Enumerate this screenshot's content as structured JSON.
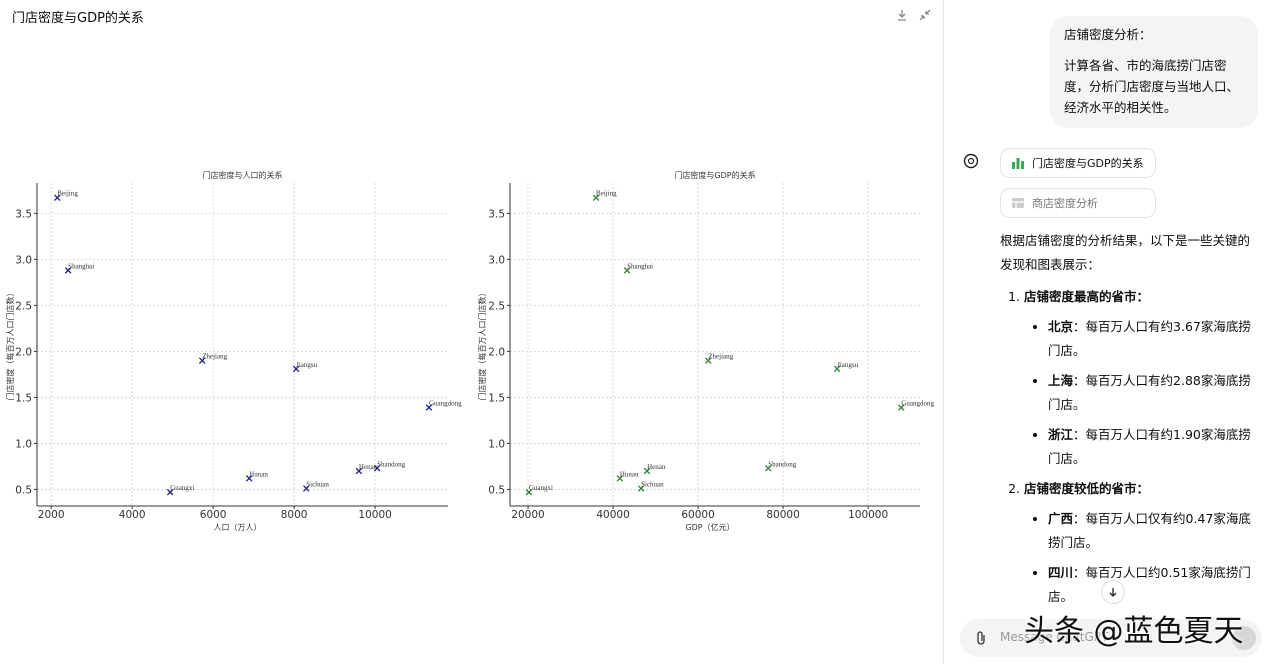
{
  "header": {
    "title": "门店密度与GDP的关系"
  },
  "chart_data": [
    {
      "type": "scatter",
      "title": "门店密度与人口的关系",
      "x_label": "人口（万人）",
      "y_label": "门店密度（每百万人口门店数）",
      "point_labels": [
        "Beijing",
        "Shanghai",
        "Zhejiang",
        "Jiangsu",
        "Guangdong",
        "Hunan",
        "Henan",
        "Shandong",
        "Sichuan",
        "Guangxi"
      ],
      "x": [
        2150,
        2420,
        5730,
        8050,
        11330,
        6890,
        9600,
        10050,
        8300,
        4940
      ],
      "values": [
        3.67,
        2.88,
        1.9,
        1.81,
        1.39,
        0.62,
        0.7,
        0.73,
        0.51,
        0.47
      ],
      "color": "#1c1c8f",
      "marker": "x",
      "grid": true,
      "xlim": [
        1650,
        11800
      ],
      "ylim": [
        0.32,
        3.83
      ],
      "xticks": [
        2000,
        4000,
        6000,
        8000,
        10000
      ],
      "yticks": [
        0.5,
        {
          "value": 1,
          "label": "1.0"
        },
        1.5,
        {
          "value": 2,
          "label": "2.0"
        },
        2.5,
        {
          "value": 3,
          "label": "3.0"
        },
        3.5
      ]
    },
    {
      "type": "scatter",
      "title": "门店密度与GDP的关系",
      "x_label": "GDP（亿元）",
      "y_label": "门店密度（每百万人口门店数）",
      "point_labels": [
        "Beijing",
        "Shanghai",
        "Zhejiang",
        "Jiangsu",
        "Guangdong",
        "Hunan",
        "Henan",
        "Shandong",
        "Sichuan",
        "Guangxi"
      ],
      "x": [
        36000,
        43300,
        62400,
        92700,
        107800,
        41600,
        48000,
        76500,
        46600,
        20200
      ],
      "values": [
        3.67,
        2.88,
        1.9,
        1.81,
        1.39,
        0.62,
        0.7,
        0.73,
        0.51,
        0.47
      ],
      "color": "#2e7d32",
      "marker": "x",
      "grid": true,
      "xlim": [
        15760,
        112200
      ],
      "ylim": [
        0.32,
        3.83
      ],
      "xticks": [
        20000,
        40000,
        60000,
        80000,
        100000
      ],
      "yticks": [
        0.5,
        {
          "value": 1,
          "label": "1.0"
        },
        1.5,
        {
          "value": 2,
          "label": "2.0"
        },
        2.5,
        {
          "value": 3,
          "label": "3.0"
        },
        3.5
      ]
    }
  ],
  "chat": {
    "user_message": {
      "title": "店铺密度分析：",
      "body": "计算各省、市的海底捞门店密度，分析门店密度与当地人口、经济水平的相关性。"
    },
    "attachments": [
      "门店密度与GDP的关系",
      "商店密度分析"
    ],
    "intro": "根据店铺密度的分析结果，以下是一些关键的发现和图表展示：",
    "sections": [
      {
        "title": "店铺密度最高的省市：",
        "items": [
          {
            "name": "北京",
            "text": "：每百万人口有约3.67家海底捞门店。"
          },
          {
            "name": "上海",
            "text": "：每百万人口有约2.88家海底捞门店。"
          },
          {
            "name": "浙江",
            "text": "：每百万人口有约1.90家海底捞门店。"
          }
        ]
      },
      {
        "title": "店铺密度较低的省市：",
        "items": [
          {
            "name": "广西",
            "text": "：每百万人口仅有约0.47家海底捞门店。"
          },
          {
            "name": "四川",
            "text": "：每百万人口约0.51家海底捞门店。"
          }
        ]
      }
    ],
    "input_placeholder": "Message ChatGPT",
    "watermark": "头条 @蓝色夏天"
  }
}
